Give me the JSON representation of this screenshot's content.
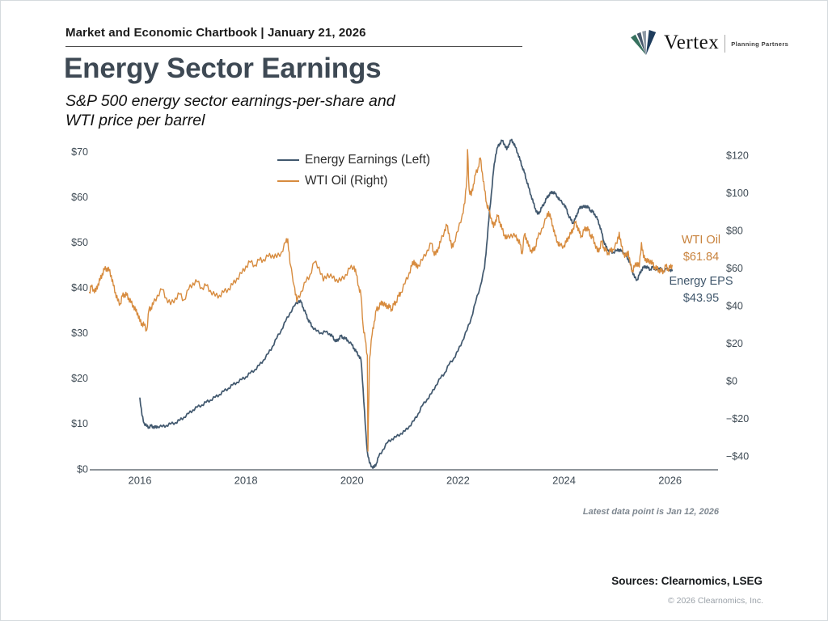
{
  "header": {
    "chartbook_title": "Market and Economic Chartbook | January 21, 2026"
  },
  "logo": {
    "brand": "Vertex",
    "tagline": "Planning Partners"
  },
  "title": "Energy Sector Earnings",
  "subtitle_line1": "S&P 500 energy sector earnings-per-share and",
  "subtitle_line2": "WTI price per barrel",
  "footnote": "Latest data point is Jan 12, 2026",
  "sources": "Sources: Clearnomics, LSEG",
  "copyright": "© 2026 Clearnomics, Inc.",
  "chart_data": {
    "type": "line",
    "title": "Energy Sector Earnings",
    "grid": false,
    "legend_position": "top-center",
    "x_axis": {
      "tick_values": [
        2016,
        2018,
        2020,
        2022,
        2024,
        2026
      ],
      "tick_labels": [
        "2016",
        "2018",
        "2020",
        "2022",
        "2024",
        "2026"
      ],
      "range": [
        2015.05,
        2026.9
      ]
    },
    "left_axis": {
      "tick_values": [
        0,
        10,
        20,
        30,
        40,
        50,
        60,
        70
      ],
      "tick_labels": [
        "$0",
        "$10",
        "$20",
        "$30",
        "$40",
        "$50",
        "$60",
        "$70"
      ],
      "range": [
        0,
        72.5
      ]
    },
    "right_axis": {
      "tick_values": [
        -40,
        -20,
        0,
        20,
        40,
        60,
        80,
        100,
        120
      ],
      "tick_labels": [
        "−$40",
        "−$20",
        "$0",
        "$20",
        "$40",
        "$60",
        "$80",
        "$100",
        "$120"
      ],
      "range": [
        -46.9,
        125
      ]
    },
    "annotations": [
      {
        "label": "WTI Oil",
        "value": "$61.84",
        "color": "#c8823c"
      },
      {
        "label": "Energy EPS",
        "value": "$43.95",
        "color": "#3f566b"
      }
    ],
    "series": [
      {
        "name": "Energy Earnings (Left)",
        "axis": "left",
        "color": "#41586e",
        "x": [
          2016.0,
          2016.04,
          2016.08,
          2016.13,
          2016.17,
          2016.21,
          2016.25,
          2016.29,
          2016.33,
          2016.42,
          2016.5,
          2016.58,
          2016.67,
          2016.75,
          2016.83,
          2016.92,
          2017.0,
          2017.08,
          2017.17,
          2017.25,
          2017.33,
          2017.42,
          2017.5,
          2017.58,
          2017.67,
          2017.75,
          2017.83,
          2017.92,
          2018.0,
          2018.08,
          2018.17,
          2018.25,
          2018.33,
          2018.42,
          2018.5,
          2018.58,
          2018.67,
          2018.75,
          2018.83,
          2018.92,
          2019.0,
          2019.04,
          2019.08,
          2019.13,
          2019.17,
          2019.21,
          2019.25,
          2019.33,
          2019.42,
          2019.5,
          2019.58,
          2019.63,
          2019.67,
          2019.71,
          2019.75,
          2019.79,
          2019.83,
          2019.88,
          2019.92,
          2020.0,
          2020.04,
          2020.08,
          2020.13,
          2020.17,
          2020.21,
          2020.25,
          2020.29,
          2020.33,
          2020.38,
          2020.42,
          2020.46,
          2020.5,
          2020.58,
          2020.67,
          2020.75,
          2020.83,
          2020.92,
          2021.0,
          2021.08,
          2021.17,
          2021.25,
          2021.33,
          2021.42,
          2021.5,
          2021.58,
          2021.67,
          2021.75,
          2021.83,
          2021.92,
          2022.0,
          2022.08,
          2022.17,
          2022.25,
          2022.33,
          2022.42,
          2022.5,
          2022.54,
          2022.58,
          2022.63,
          2022.67,
          2022.71,
          2022.75,
          2022.79,
          2022.83,
          2022.88,
          2022.92,
          2022.96,
          2023.0,
          2023.04,
          2023.08,
          2023.13,
          2023.17,
          2023.21,
          2023.25,
          2023.29,
          2023.33,
          2023.38,
          2023.42,
          2023.46,
          2023.5,
          2023.54,
          2023.58,
          2023.63,
          2023.67,
          2023.71,
          2023.75,
          2023.79,
          2023.83,
          2023.88,
          2023.92,
          2024.0,
          2024.04,
          2024.08,
          2024.13,
          2024.17,
          2024.21,
          2024.25,
          2024.29,
          2024.33,
          2024.38,
          2024.42,
          2024.46,
          2024.5,
          2024.54,
          2024.58,
          2024.63,
          2024.67,
          2024.71,
          2024.75,
          2024.79,
          2024.83,
          2024.88,
          2024.92,
          2025.0,
          2025.04,
          2025.08,
          2025.13,
          2025.17,
          2025.21,
          2025.25,
          2025.29,
          2025.33,
          2025.38,
          2025.42,
          2025.46,
          2025.5,
          2025.54,
          2025.58,
          2025.63,
          2025.67,
          2025.71,
          2025.75,
          2025.79,
          2025.83,
          2025.88,
          2025.92,
          2026.0,
          2026.04
        ],
        "values": [
          15.8,
          12.0,
          10.3,
          9.6,
          9.4,
          9.7,
          9.5,
          9.3,
          9.6,
          9.5,
          9.8,
          10.1,
          10.4,
          10.9,
          11.6,
          12.4,
          13.2,
          13.8,
          14.3,
          14.9,
          15.4,
          16.0,
          16.6,
          17.3,
          18.0,
          18.7,
          19.3,
          19.9,
          20.5,
          21.3,
          22.1,
          23.0,
          24.2,
          25.6,
          27.2,
          29.0,
          30.9,
          32.8,
          34.6,
          36.2,
          37.3,
          37.0,
          35.8,
          34.4,
          33.2,
          32.4,
          31.6,
          30.6,
          30.2,
          30.4,
          30.0,
          29.4,
          28.7,
          28.3,
          28.9,
          29.5,
          29.2,
          28.9,
          28.6,
          27.5,
          26.8,
          26.0,
          25.2,
          24.3,
          18.0,
          10.0,
          4.0,
          1.5,
          0.7,
          0.5,
          1.4,
          2.8,
          4.4,
          6.0,
          6.8,
          7.2,
          8.0,
          8.5,
          9.6,
          10.8,
          12.4,
          14.2,
          15.6,
          16.8,
          18.6,
          20.2,
          21.4,
          23.2,
          24.6,
          26.2,
          28.4,
          30.8,
          33.5,
          36.9,
          40.5,
          44.5,
          49.5,
          55.0,
          61.0,
          66.0,
          69.5,
          71.2,
          72.0,
          72.6,
          71.8,
          70.6,
          71.8,
          72.7,
          72.3,
          71.2,
          69.8,
          68.3,
          66.9,
          65.6,
          64.0,
          62.3,
          60.5,
          58.9,
          57.6,
          56.4,
          56.9,
          57.8,
          58.9,
          59.8,
          60.6,
          61.0,
          61.3,
          60.9,
          60.2,
          59.4,
          58.6,
          57.6,
          56.3,
          55.1,
          54.4,
          55.3,
          56.6,
          57.6,
          58.1,
          57.9,
          58.2,
          57.8,
          57.2,
          56.9,
          56.4,
          55.2,
          54.0,
          52.3,
          50.4,
          49.2,
          48.5,
          48.2,
          48.0,
          48.3,
          48.6,
          48.2,
          47.8,
          47.2,
          46.5,
          45.4,
          43.8,
          42.4,
          41.9,
          43.0,
          44.1,
          44.6,
          44.9,
          44.5,
          44.2,
          44.7,
          44.4,
          44.1,
          44.5,
          44.2,
          43.8,
          44.3,
          44.1,
          43.95
        ]
      },
      {
        "name": "WTI Oil (Right)",
        "axis": "right",
        "color": "#d78b3e",
        "x": [
          2015.05,
          2015.08,
          2015.13,
          2015.17,
          2015.21,
          2015.25,
          2015.29,
          2015.33,
          2015.38,
          2015.42,
          2015.46,
          2015.5,
          2015.54,
          2015.58,
          2015.63,
          2015.67,
          2015.71,
          2015.75,
          2015.79,
          2015.83,
          2015.88,
          2015.92,
          2015.96,
          2016.0,
          2016.04,
          2016.08,
          2016.13,
          2016.17,
          2016.21,
          2016.25,
          2016.33,
          2016.42,
          2016.5,
          2016.58,
          2016.67,
          2016.75,
          2016.83,
          2016.92,
          2017.0,
          2017.08,
          2017.17,
          2017.25,
          2017.33,
          2017.42,
          2017.5,
          2017.58,
          2017.67,
          2017.75,
          2017.83,
          2017.92,
          2018.0,
          2018.08,
          2018.17,
          2018.25,
          2018.33,
          2018.42,
          2018.5,
          2018.58,
          2018.67,
          2018.75,
          2018.79,
          2018.83,
          2018.92,
          2018.96,
          2019.04,
          2019.13,
          2019.21,
          2019.29,
          2019.38,
          2019.46,
          2019.54,
          2019.63,
          2019.71,
          2019.79,
          2019.88,
          2019.96,
          2020.04,
          2020.08,
          2020.13,
          2020.17,
          2020.21,
          2020.25,
          2020.29,
          2020.3,
          2020.33,
          2020.38,
          2020.42,
          2020.46,
          2020.5,
          2020.54,
          2020.58,
          2020.63,
          2020.67,
          2020.71,
          2020.75,
          2020.79,
          2020.83,
          2020.88,
          2020.92,
          2021.0,
          2021.08,
          2021.13,
          2021.17,
          2021.21,
          2021.25,
          2021.33,
          2021.42,
          2021.5,
          2021.54,
          2021.58,
          2021.63,
          2021.67,
          2021.75,
          2021.79,
          2021.83,
          2021.88,
          2021.92,
          2022.0,
          2022.08,
          2022.13,
          2022.17,
          2022.18,
          2022.21,
          2022.25,
          2022.29,
          2022.33,
          2022.38,
          2022.42,
          2022.46,
          2022.5,
          2022.54,
          2022.58,
          2022.63,
          2022.67,
          2022.71,
          2022.75,
          2022.79,
          2022.83,
          2022.88,
          2022.92,
          2023.0,
          2023.08,
          2023.13,
          2023.17,
          2023.21,
          2023.25,
          2023.29,
          2023.33,
          2023.38,
          2023.42,
          2023.46,
          2023.5,
          2023.58,
          2023.67,
          2023.71,
          2023.75,
          2023.79,
          2023.83,
          2023.88,
          2023.92,
          2024.0,
          2024.04,
          2024.08,
          2024.13,
          2024.17,
          2024.21,
          2024.25,
          2024.29,
          2024.33,
          2024.38,
          2024.42,
          2024.46,
          2024.5,
          2024.54,
          2024.58,
          2024.63,
          2024.67,
          2024.71,
          2024.75,
          2024.79,
          2024.83,
          2024.88,
          2024.92,
          2025.0,
          2025.04,
          2025.08,
          2025.13,
          2025.17,
          2025.21,
          2025.25,
          2025.29,
          2025.33,
          2025.38,
          2025.42,
          2025.46,
          2025.5,
          2025.54,
          2025.58,
          2025.63,
          2025.67,
          2025.71,
          2025.75,
          2025.79,
          2025.83,
          2025.88,
          2025.92,
          2025.96,
          2026.0,
          2026.04
        ],
        "values": [
          47.5,
          50.5,
          49.0,
          48.0,
          52.0,
          54.0,
          57.5,
          59.5,
          60.5,
          59.0,
          56.5,
          51.0,
          47.5,
          43.0,
          41.5,
          45.5,
          46.5,
          46.0,
          44.5,
          42.0,
          40.5,
          37.5,
          36.5,
          32.0,
          31.0,
          30.0,
          27.5,
          38.0,
          39.5,
          41.0,
          46.0,
          49.0,
          44.5,
          41.0,
          44.5,
          46.5,
          43.5,
          49.0,
          52.5,
          53.0,
          50.0,
          51.0,
          48.5,
          45.5,
          46.0,
          47.5,
          49.5,
          51.5,
          55.0,
          57.5,
          61.5,
          63.5,
          62.0,
          64.5,
          65.0,
          66.5,
          67.5,
          66.0,
          69.0,
          74.0,
          76.0,
          63.0,
          50.0,
          42.5,
          48.0,
          53.0,
          57.0,
          63.5,
          61.0,
          53.5,
          57.5,
          55.0,
          54.5,
          53.5,
          57.0,
          60.0,
          61.5,
          57.0,
          50.5,
          46.0,
          30.0,
          22.0,
          14.0,
          -37.0,
          12.0,
          25.0,
          32.0,
          38.0,
          39.5,
          41.0,
          42.5,
          40.0,
          40.5,
          39.5,
          38.5,
          41.0,
          42.5,
          45.5,
          47.5,
          52.0,
          58.0,
          61.5,
          64.5,
          61.0,
          62.0,
          64.5,
          70.0,
          73.5,
          69.0,
          67.5,
          71.5,
          74.0,
          81.0,
          83.0,
          79.0,
          71.0,
          74.0,
          80.0,
          89.0,
          95.0,
          110.0,
          123.5,
          102.0,
          99.0,
          105.0,
          110.0,
          114.0,
          119.0,
          111.0,
          102.0,
          95.0,
          91.0,
          87.0,
          82.0,
          86.0,
          88.0,
          85.0,
          81.0,
          78.0,
          76.0,
          78.5,
          77.0,
          76.0,
          73.0,
          68.0,
          78.0,
          76.5,
          72.0,
          70.0,
          69.5,
          72.0,
          76.0,
          81.5,
          87.0,
          90.5,
          86.5,
          83.0,
          77.5,
          74.5,
          72.0,
          72.5,
          74.0,
          77.0,
          78.5,
          81.5,
          84.5,
          83.0,
          79.0,
          77.5,
          80.5,
          82.0,
          80.5,
          78.0,
          76.5,
          74.0,
          69.0,
          71.0,
          74.5,
          71.5,
          69.5,
          68.5,
          69.5,
          70.5,
          73.5,
          79.5,
          72.0,
          68.0,
          66.5,
          69.5,
          62.0,
          59.0,
          61.0,
          63.5,
          61.0,
          74.0,
          66.0,
          65.5,
          63.5,
          64.5,
          62.5,
          61.0,
          60.0,
          59.5,
          58.5,
          59.0,
          61.5,
          60.0,
          60.5,
          61.84
        ]
      }
    ]
  }
}
